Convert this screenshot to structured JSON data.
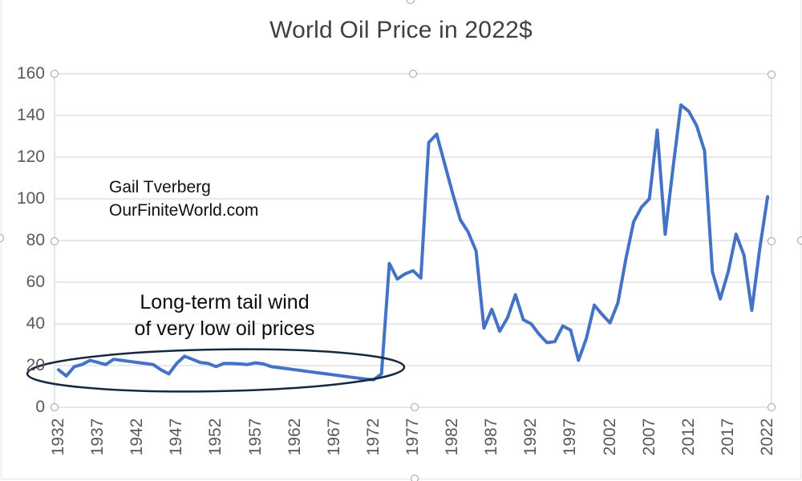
{
  "title": "World Oil Price in 2022$",
  "attribution": {
    "line1": "Gail Tverberg",
    "line2": "OurFiniteWorld.com"
  },
  "annotation": {
    "line1": "Long-term tail wind",
    "line2": "of very low oil prices"
  },
  "y_axis": {
    "ticks": [
      0,
      20,
      40,
      60,
      80,
      100,
      120,
      140,
      160
    ]
  },
  "x_axis": {
    "tick_years": [
      1932,
      1937,
      1942,
      1947,
      1952,
      1957,
      1962,
      1967,
      1972,
      1977,
      1982,
      1987,
      1992,
      1997,
      2002,
      2007,
      2012,
      2017,
      2022
    ]
  },
  "colors": {
    "line": "#4472C4",
    "gridline": "#D9D9D9",
    "plot_border": "#D9D9D9",
    "axis_text": "#595959",
    "title_text": "#404040",
    "annotation_text": "#0D0D0D",
    "ellipse": "#16283F",
    "handle_border": "#9E9E9E"
  },
  "chart_data": {
    "type": "line",
    "title": "World Oil Price in 2022$",
    "xlabel": "",
    "ylabel": "",
    "ylim": [
      0,
      160
    ],
    "grid": true,
    "legend": "none",
    "x": [
      1932,
      1933,
      1934,
      1935,
      1936,
      1937,
      1938,
      1939,
      1940,
      1941,
      1942,
      1943,
      1944,
      1945,
      1946,
      1947,
      1948,
      1949,
      1950,
      1951,
      1952,
      1953,
      1954,
      1955,
      1956,
      1957,
      1958,
      1959,
      1960,
      1961,
      1962,
      1963,
      1964,
      1965,
      1966,
      1967,
      1968,
      1969,
      1970,
      1971,
      1972,
      1973,
      1974,
      1975,
      1976,
      1977,
      1978,
      1979,
      1980,
      1981,
      1982,
      1983,
      1984,
      1985,
      1986,
      1987,
      1988,
      1989,
      1990,
      1991,
      1992,
      1993,
      1994,
      1995,
      1996,
      1997,
      1998,
      1999,
      2000,
      2001,
      2002,
      2003,
      2004,
      2005,
      2006,
      2007,
      2008,
      2009,
      2010,
      2011,
      2012,
      2013,
      2014,
      2015,
      2016,
      2017,
      2018,
      2019,
      2020,
      2021,
      2022
    ],
    "series": [
      {
        "name": "World oil price in 2022 dollars",
        "values": [
          18,
          15,
          19.5,
          20.5,
          22.5,
          21.5,
          20.5,
          23,
          22.5,
          22,
          21.5,
          21,
          20.5,
          18,
          16,
          21,
          24.5,
          23,
          21.5,
          21,
          19.5,
          21,
          21,
          20.8,
          20.5,
          21.3,
          20.8,
          19.5,
          19,
          18.5,
          18,
          17.5,
          17,
          16.5,
          16,
          15.5,
          15,
          14.5,
          14,
          13.5,
          13.2,
          16,
          69,
          61.5,
          64,
          65.5,
          62,
          127,
          131,
          117,
          103,
          90,
          84,
          75,
          38,
          47,
          36.5,
          43,
          54,
          42,
          40,
          35,
          31,
          31.5,
          39,
          37,
          22.5,
          33,
          49,
          44.5,
          40.5,
          50,
          71,
          89,
          96,
          100,
          133,
          83,
          115,
          145,
          142,
          135,
          123,
          65,
          52,
          65,
          83,
          73,
          46.5,
          76,
          101
        ]
      }
    ],
    "annotations": [
      {
        "text": "Long-term tail wind of very low oil prices",
        "shape": "ellipse",
        "circled_region": "1932-1972 era of low prices (~13-25 $)"
      }
    ]
  }
}
